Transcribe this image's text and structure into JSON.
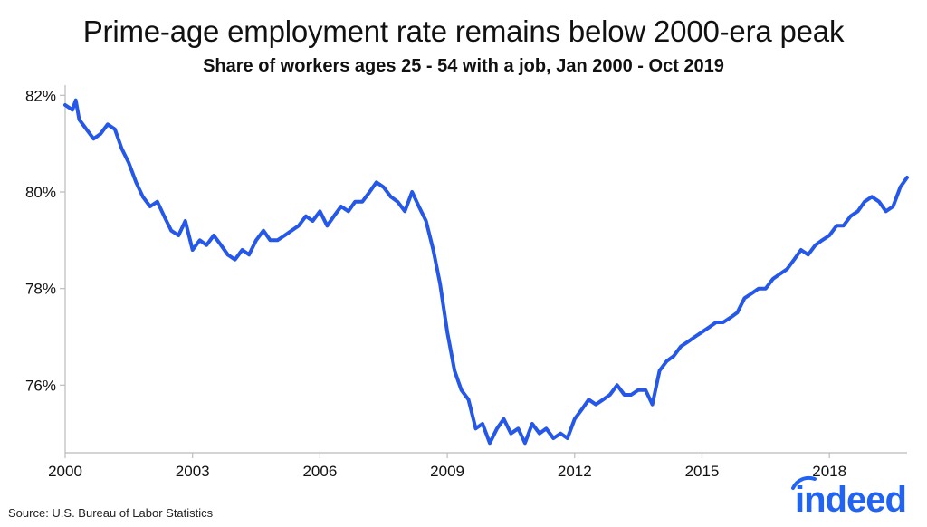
{
  "title": "Prime-age employment rate remains below 2000-era peak",
  "subtitle": "Share of workers ages 25 - 54 with a job, Jan 2000 - Oct 2019",
  "source": "Source: U.S. Bureau of Labor Statistics",
  "logo_text": "indeed",
  "colors": {
    "line": "#2557e8",
    "axis": "#bbbbbb",
    "text": "#111111",
    "logo": "#2164f3"
  },
  "chart_data": {
    "type": "line",
    "title": "Prime-age employment rate remains below 2000-era peak",
    "subtitle": "Share of workers ages 25 - 54 with a job, Jan 2000 - Oct 2019",
    "xlabel": "",
    "ylabel": "",
    "grid": false,
    "legend": "none",
    "xlim": [
      2000,
      2019.83
    ],
    "ylim": [
      74.6,
      82.1
    ],
    "x_ticks": [
      2000,
      2003,
      2006,
      2009,
      2012,
      2015,
      2018
    ],
    "x_tick_labels": [
      "2000",
      "2003",
      "2006",
      "2009",
      "2012",
      "2015",
      "2018"
    ],
    "y_ticks": [
      82,
      80,
      78,
      76
    ],
    "y_tick_labels": [
      "82%",
      "80%",
      "78%",
      "76%"
    ],
    "series": [
      {
        "x": [
          2000.0,
          2000.17,
          2000.25,
          2000.33,
          2000.5,
          2000.67,
          2000.83,
          2001.0,
          2001.17,
          2001.33,
          2001.5,
          2001.67,
          2001.83,
          2002.0,
          2002.17,
          2002.33,
          2002.5,
          2002.67,
          2002.83,
          2003.0,
          2003.17,
          2003.33,
          2003.5,
          2003.67,
          2003.83,
          2004.0,
          2004.17,
          2004.33,
          2004.5,
          2004.67,
          2004.83,
          2005.0,
          2005.17,
          2005.33,
          2005.5,
          2005.67,
          2005.83,
          2006.0,
          2006.17,
          2006.33,
          2006.5,
          2006.67,
          2006.83,
          2007.0,
          2007.17,
          2007.33,
          2007.5,
          2007.67,
          2007.83,
          2008.0,
          2008.17,
          2008.33,
          2008.5,
          2008.67,
          2008.83,
          2009.0,
          2009.17,
          2009.33,
          2009.5,
          2009.67,
          2009.83,
          2010.0,
          2010.17,
          2010.33,
          2010.5,
          2010.67,
          2010.83,
          2011.0,
          2011.17,
          2011.33,
          2011.5,
          2011.67,
          2011.83,
          2012.0,
          2012.17,
          2012.33,
          2012.5,
          2012.67,
          2012.83,
          2013.0,
          2013.17,
          2013.33,
          2013.5,
          2013.67,
          2013.83,
          2014.0,
          2014.17,
          2014.33,
          2014.5,
          2014.67,
          2014.83,
          2015.0,
          2015.17,
          2015.33,
          2015.5,
          2015.67,
          2015.83,
          2016.0,
          2016.17,
          2016.33,
          2016.5,
          2016.67,
          2016.83,
          2017.0,
          2017.17,
          2017.33,
          2017.5,
          2017.67,
          2017.83,
          2018.0,
          2018.17,
          2018.33,
          2018.5,
          2018.67,
          2018.83,
          2019.0,
          2019.17,
          2019.33,
          2019.5,
          2019.67,
          2019.83
        ],
        "y": [
          81.8,
          81.7,
          81.9,
          81.5,
          81.3,
          81.1,
          81.2,
          81.4,
          81.3,
          80.9,
          80.6,
          80.2,
          79.9,
          79.7,
          79.8,
          79.5,
          79.2,
          79.1,
          79.4,
          78.8,
          79.0,
          78.9,
          79.1,
          78.9,
          78.7,
          78.6,
          78.8,
          78.7,
          79.0,
          79.2,
          79.0,
          79.0,
          79.1,
          79.2,
          79.3,
          79.5,
          79.4,
          79.6,
          79.3,
          79.5,
          79.7,
          79.6,
          79.8,
          79.8,
          80.0,
          80.2,
          80.1,
          79.9,
          79.8,
          79.6,
          80.0,
          79.7,
          79.4,
          78.8,
          78.1,
          77.1,
          76.3,
          75.9,
          75.7,
          75.1,
          75.2,
          74.8,
          75.1,
          75.3,
          75.0,
          75.1,
          74.8,
          75.2,
          75.0,
          75.1,
          74.9,
          75.0,
          74.9,
          75.3,
          75.5,
          75.7,
          75.6,
          75.7,
          75.8,
          76.0,
          75.8,
          75.8,
          75.9,
          75.9,
          75.6,
          76.3,
          76.5,
          76.6,
          76.8,
          76.9,
          77.0,
          77.1,
          77.2,
          77.3,
          77.3,
          77.4,
          77.5,
          77.8,
          77.9,
          78.0,
          78.0,
          78.2,
          78.3,
          78.4,
          78.6,
          78.8,
          78.7,
          78.9,
          79.0,
          79.1,
          79.3,
          79.3,
          79.5,
          79.6,
          79.8,
          79.9,
          79.8,
          79.6,
          79.7,
          80.1,
          80.3
        ]
      }
    ]
  }
}
